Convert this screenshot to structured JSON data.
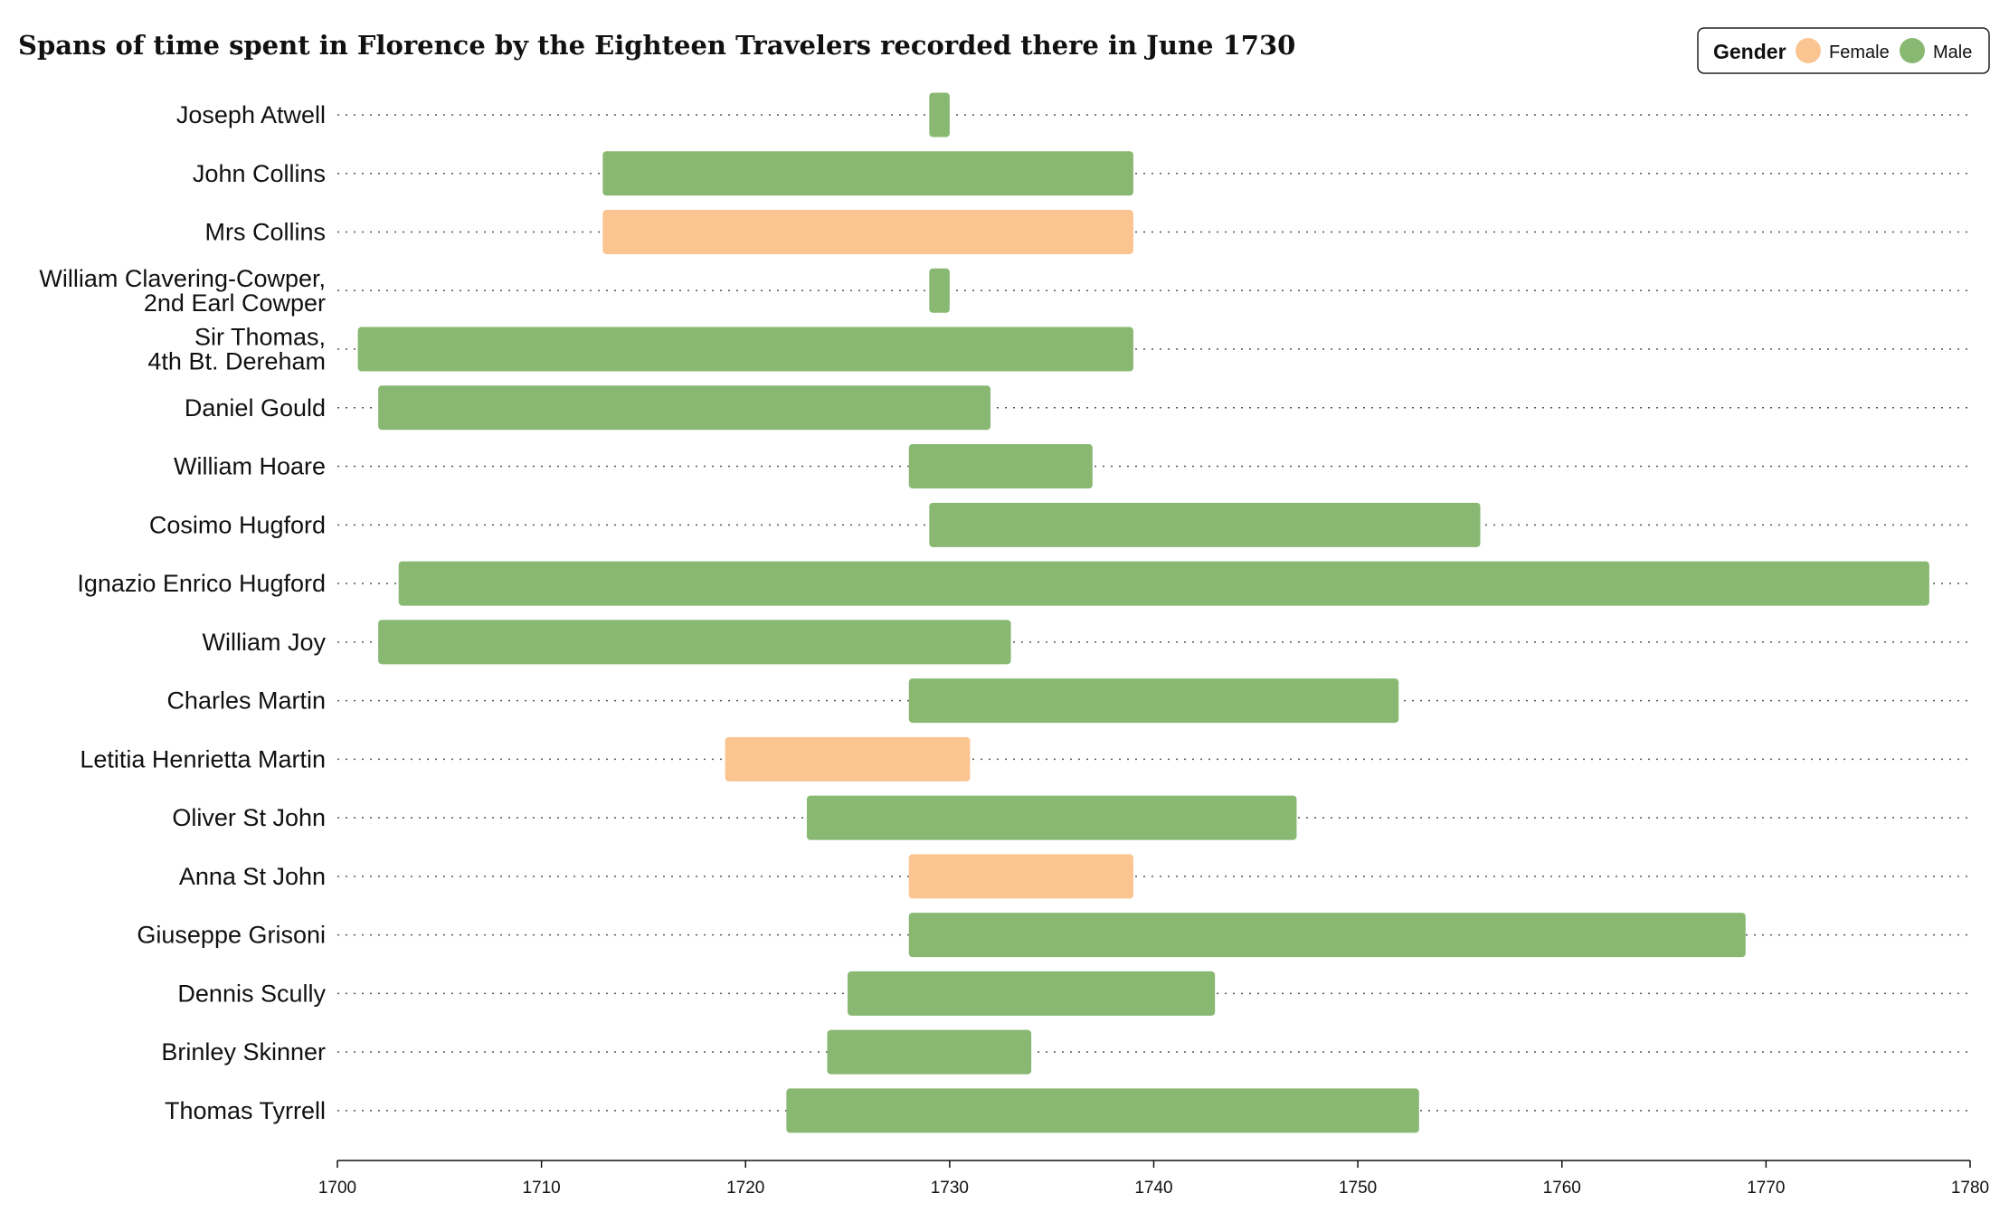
{
  "chart_data": {
    "type": "bar",
    "orientation": "horizontal-range",
    "title": "Spans of time spent in Florence by the Eighteen Travelers recorded there in June 1730",
    "xlabel": "",
    "ylabel": "",
    "xlim": [
      1700,
      1780
    ],
    "xticks": [
      "1700",
      "1710",
      "1720",
      "1730",
      "1740",
      "1750",
      "1760",
      "1770",
      "1780"
    ],
    "grid": "dotted row guides",
    "legend": {
      "title": "Gender",
      "placement": "top-right",
      "items": [
        {
          "label": "Female",
          "color": "#fac591"
        },
        {
          "label": "Male",
          "color": "#88b872"
        }
      ]
    },
    "colors": {
      "Female": "#fac591",
      "Male": "#88b872"
    },
    "rows": [
      {
        "name": [
          "Joseph Atwell"
        ],
        "start": 1729,
        "end": 1730,
        "gender": "Male"
      },
      {
        "name": [
          "John Collins"
        ],
        "start": 1713,
        "end": 1739,
        "gender": "Male"
      },
      {
        "name": [
          "Mrs Collins"
        ],
        "start": 1713,
        "end": 1739,
        "gender": "Female"
      },
      {
        "name": [
          "William Clavering-Cowper,",
          "2nd Earl Cowper"
        ],
        "start": 1729,
        "end": 1730,
        "gender": "Male"
      },
      {
        "name": [
          "Sir Thomas,",
          "4th Bt. Dereham"
        ],
        "start": 1701,
        "end": 1739,
        "gender": "Male"
      },
      {
        "name": [
          "Daniel Gould"
        ],
        "start": 1702,
        "end": 1732,
        "gender": "Male"
      },
      {
        "name": [
          "William Hoare"
        ],
        "start": 1728,
        "end": 1737,
        "gender": "Male"
      },
      {
        "name": [
          "Cosimo Hugford"
        ],
        "start": 1729,
        "end": 1756,
        "gender": "Male"
      },
      {
        "name": [
          "Ignazio Enrico Hugford"
        ],
        "start": 1703,
        "end": 1778,
        "gender": "Male"
      },
      {
        "name": [
          "William Joy"
        ],
        "start": 1702,
        "end": 1733,
        "gender": "Male"
      },
      {
        "name": [
          "Charles Martin"
        ],
        "start": 1728,
        "end": 1752,
        "gender": "Male"
      },
      {
        "name": [
          "Letitia Henrietta Martin"
        ],
        "start": 1719,
        "end": 1731,
        "gender": "Female"
      },
      {
        "name": [
          "Oliver St John"
        ],
        "start": 1723,
        "end": 1747,
        "gender": "Male"
      },
      {
        "name": [
          "Anna St John"
        ],
        "start": 1728,
        "end": 1739,
        "gender": "Female"
      },
      {
        "name": [
          "Giuseppe Grisoni"
        ],
        "start": 1728,
        "end": 1769,
        "gender": "Male"
      },
      {
        "name": [
          "Dennis Scully"
        ],
        "start": 1725,
        "end": 1743,
        "gender": "Male"
      },
      {
        "name": [
          "Brinley Skinner"
        ],
        "start": 1724,
        "end": 1734,
        "gender": "Male"
      },
      {
        "name": [
          "Thomas Tyrrell"
        ],
        "start": 1722,
        "end": 1753,
        "gender": "Male"
      }
    ]
  }
}
